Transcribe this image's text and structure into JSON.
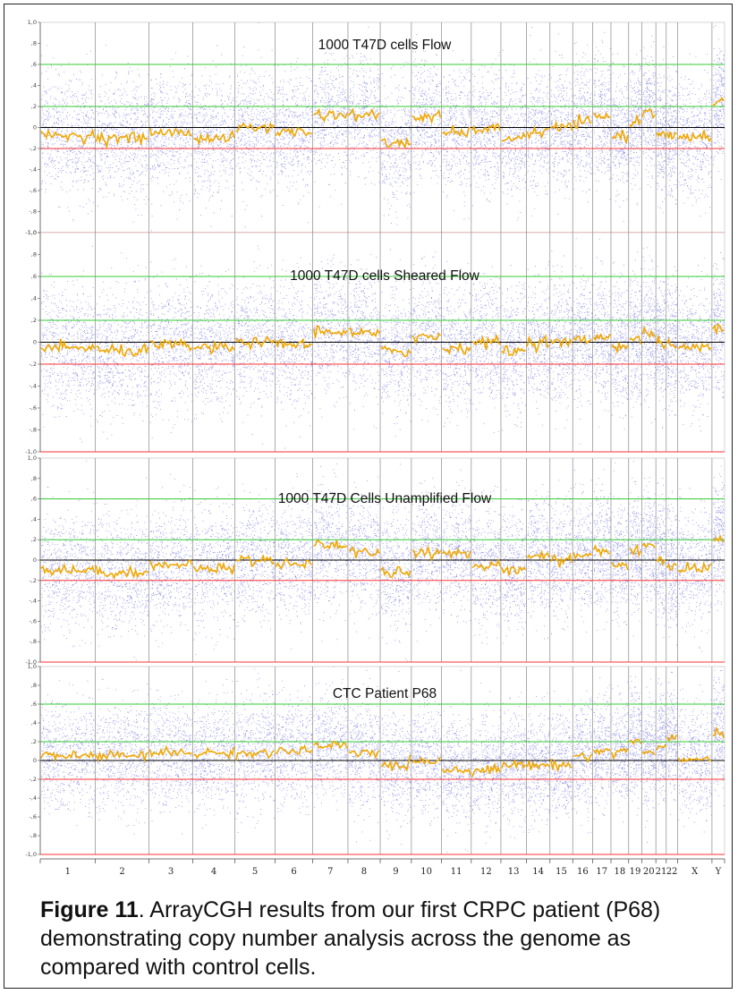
{
  "figure": {
    "label": "Figure 11",
    "text": ".  ArrayCGH results from our first CRPC patient (P68) demonstrating copy number analysis across the genome as compared with control cells."
  },
  "chart_data": {
    "type": "scatter",
    "ylim": [
      -1.0,
      1.0
    ],
    "yticks": [
      "1,0",
      ",8",
      ",6",
      ",4",
      ",2",
      "0",
      "-,2",
      "-,4",
      "-,6",
      "-,8",
      "-1,0"
    ],
    "reference_lines": [
      {
        "y": 0.6,
        "color": "#33cc33"
      },
      {
        "y": 0.2,
        "color": "#33cc33"
      },
      {
        "y": 0.0,
        "color": "#000000"
      },
      {
        "y": -0.2,
        "color": "#ff3333"
      },
      {
        "y": -1.0,
        "color": "#ff3333"
      }
    ],
    "chromosomes": [
      "1",
      "2",
      "3",
      "4",
      "5",
      "6",
      "7",
      "8",
      "9",
      "10",
      "11",
      "12",
      "13",
      "14",
      "15",
      "16",
      "17",
      "18",
      "19",
      "20",
      "21",
      "22",
      "X",
      "Y"
    ],
    "chromosome_sizes": [
      249,
      243,
      198,
      191,
      181,
      171,
      159,
      146,
      141,
      136,
      135,
      134,
      115,
      107,
      103,
      90,
      83,
      80,
      59,
      64,
      47,
      51,
      156,
      57
    ],
    "colors": {
      "points": "#3b3bd6",
      "segment": "#f0a800",
      "separator": "#888888"
    },
    "panels": [
      {
        "title": "1000 T47D cells Flow",
        "segment_means": [
          -0.08,
          -0.1,
          -0.05,
          -0.1,
          0.0,
          -0.04,
          0.12,
          0.12,
          -0.15,
          0.1,
          -0.05,
          -0.02,
          -0.1,
          -0.05,
          0.0,
          0.05,
          0.1,
          -0.08,
          0.05,
          0.15,
          -0.05,
          -0.08,
          -0.1,
          0.25
        ]
      },
      {
        "title": "1000 T47D cells Sheared Flow",
        "segment_means": [
          -0.05,
          -0.08,
          -0.03,
          -0.05,
          0.0,
          -0.02,
          0.1,
          0.08,
          -0.08,
          0.05,
          -0.05,
          0.0,
          -0.08,
          0.0,
          0.0,
          0.02,
          0.05,
          -0.03,
          0.02,
          0.08,
          0.0,
          -0.03,
          -0.05,
          0.15
        ]
      },
      {
        "title": "1000 T47D Cells Unamplified Flow",
        "segment_means": [
          -0.1,
          -0.12,
          -0.05,
          -0.08,
          0.0,
          -0.03,
          0.15,
          0.08,
          -0.12,
          0.08,
          0.05,
          -0.05,
          -0.1,
          0.05,
          0.0,
          0.05,
          0.1,
          -0.05,
          0.08,
          0.15,
          0.0,
          -0.05,
          -0.08,
          0.2
        ]
      },
      {
        "title": "CTC Patient  P68",
        "segment_means": [
          0.05,
          0.05,
          0.08,
          0.08,
          0.08,
          0.1,
          0.15,
          0.08,
          -0.05,
          0.0,
          -0.1,
          -0.1,
          -0.05,
          -0.05,
          -0.05,
          0.05,
          0.1,
          0.1,
          0.2,
          0.08,
          0.15,
          0.25,
          0.0,
          0.3
        ]
      }
    ]
  }
}
